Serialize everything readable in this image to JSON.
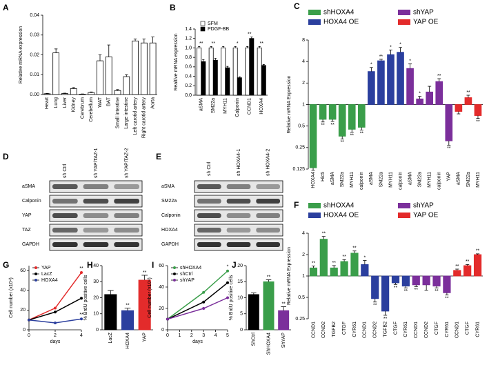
{
  "chart_data": [
    {
      "panel": "A",
      "type": "bar",
      "ylabel": "Relative mRNA expression",
      "categories": [
        "Heart",
        "Lung",
        "Liver",
        "Kidney",
        "Cerebrum",
        "Cerebellum",
        "WAT",
        "BAT",
        "Small intestine",
        "Large intestine",
        "Left carotid artery",
        "Right carotid artery",
        "Aorta"
      ],
      "values": [
        0.0004,
        0.021,
        0.0005,
        0.003,
        0.0002,
        0.001,
        0.017,
        0.019,
        0.002,
        0.009,
        0.027,
        0.026,
        0.026
      ],
      "errors": [
        0.0002,
        0.002,
        0.0002,
        0.0005,
        0.0001,
        0.0003,
        0.003,
        0.006,
        0.0005,
        0.001,
        0.001,
        0.002,
        0.003
      ],
      "color": "#ffffff",
      "edgecolor": "#000000",
      "ylim": [
        0,
        0.04
      ],
      "yticks": [
        {
          "value": 0,
          "label": "0.00"
        },
        0.01,
        0.02,
        0.03,
        0.04
      ]
    },
    {
      "panel": "B",
      "type": "bar",
      "ylabel": "Realtive mRNA expression",
      "categories": [
        "aSMA",
        "SM22a",
        "MYH11",
        "Calponin",
        "CCND1",
        "HOXA4"
      ],
      "series": [
        {
          "name": "SFM",
          "color": "#ffffff",
          "values": [
            1,
            1,
            1,
            1,
            1,
            1
          ],
          "errors": [
            0.03,
            0.03,
            0.03,
            0.03,
            0.03,
            0.03
          ]
        },
        {
          "name": "PDGF-BB",
          "color": "#000000",
          "values": [
            0.71,
            0.74,
            0.58,
            0.37,
            1.2,
            0.63
          ],
          "errors": [
            0.04,
            0.04,
            0.03,
            0.02,
            0.03,
            0.02
          ]
        }
      ],
      "significance": [
        "**",
        "**",
        null,
        "*",
        "**",
        "**"
      ],
      "edgecolor": "#000000",
      "legend": "upper left",
      "ylim": [
        0,
        1.4
      ],
      "yticks": [
        {
          "value": 0,
          "label": "0.0"
        },
        0.2,
        0.4,
        0.6,
        0.8,
        {
          "value": 1,
          "label": "1.0"
        },
        1.2,
        1.4
      ]
    },
    {
      "panel": "C",
      "type": "bar",
      "ylabel": "Relative mRNA Expression",
      "log_base": 2,
      "legend": "top",
      "categories": [
        "HOXA4",
        "Hic5",
        "aSMA",
        "SM22a",
        "MYH11",
        "calponin",
        "aSMA",
        "SM22a",
        "MYH11",
        "calponin",
        "aSMA",
        "SM22a",
        "MYH11",
        "calponin",
        "YAP",
        "aSMA",
        "SM22a",
        "MYH11"
      ],
      "series": [
        {
          "name": "shHOXA4",
          "color": "#3a9e4a",
          "values": [
            0.13,
            0.62,
            0.62,
            0.36,
            0.45,
            0.48,
            null,
            null,
            null,
            null,
            null,
            null,
            null,
            null,
            null,
            null,
            null,
            null
          ],
          "errors": [
            0.01,
            0.05,
            0.04,
            0.03,
            0.04,
            0.04,
            null,
            null,
            null,
            null,
            null,
            null,
            null,
            null,
            null,
            null,
            null,
            null
          ]
        },
        {
          "name": "HOXA4 OE",
          "color": "#2b3f9e",
          "values": [
            null,
            null,
            null,
            null,
            null,
            null,
            2.9,
            4.1,
            5.0,
            5.4,
            null,
            null,
            null,
            null,
            null,
            null,
            null,
            null
          ],
          "errors": [
            null,
            null,
            null,
            null,
            null,
            null,
            0.4,
            0.2,
            0.8,
            0.9,
            null,
            null,
            null,
            null,
            null,
            null,
            null,
            null
          ]
        },
        {
          "name": "shYAP",
          "color": "#7b2f9b",
          "values": [
            null,
            null,
            null,
            null,
            null,
            null,
            null,
            null,
            null,
            null,
            3.2,
            1.2,
            1.5,
            2.1,
            0.31,
            null,
            null,
            null
          ],
          "errors": [
            null,
            null,
            null,
            null,
            null,
            null,
            null,
            null,
            null,
            null,
            0.5,
            0.1,
            0.3,
            0.2,
            0.04,
            null,
            null,
            null
          ]
        },
        {
          "name": "YAP OE",
          "color": "#e32b2b",
          "values": [
            null,
            null,
            null,
            null,
            null,
            null,
            null,
            null,
            null,
            null,
            null,
            null,
            null,
            null,
            null,
            0.8,
            1.25,
            0.7
          ],
          "errors": [
            null,
            null,
            null,
            null,
            null,
            null,
            null,
            null,
            null,
            null,
            null,
            null,
            null,
            null,
            null,
            0.06,
            0.1,
            0.06
          ]
        }
      ],
      "significance": [
        null,
        "**",
        "**",
        "**",
        "**",
        "**",
        "*",
        "**",
        "*",
        "*",
        "*",
        "*",
        null,
        "**",
        "**",
        null,
        "**",
        "**"
      ],
      "ylim": [
        0.125,
        8
      ],
      "yticks": [
        0.125,
        0.25,
        0.5,
        1,
        2,
        4,
        8
      ]
    },
    {
      "panel": "F",
      "type": "bar",
      "ylabel": "Relative mRNA Expression",
      "log_base": 2,
      "legend": "top",
      "categories": [
        "CCND1",
        "CCND2",
        "TGFB2",
        "CTGF",
        "CYR61",
        "CCND1",
        "CCND2",
        "TGFB2",
        "CTGF",
        "CYR61",
        "CCND1",
        "CCND2",
        "CTGF",
        "CYR61",
        "CCND1",
        "CTGF",
        "CYR61"
      ],
      "series": [
        {
          "name": "shHOXA4",
          "color": "#3a9e4a",
          "values": [
            1.3,
            3.3,
            1.3,
            1.6,
            2.1,
            null,
            null,
            null,
            null,
            null,
            null,
            null,
            null,
            null,
            null,
            null,
            null
          ],
          "errors": [
            0.08,
            0.3,
            0.1,
            0.1,
            0.15,
            null,
            null,
            null,
            null,
            null,
            null,
            null,
            null,
            null,
            null,
            null,
            null
          ]
        },
        {
          "name": "HOXA4 OE",
          "color": "#2b3f9e",
          "values": [
            null,
            null,
            null,
            null,
            null,
            1.45,
            0.48,
            0.32,
            0.8,
            0.72,
            null,
            null,
            null,
            null,
            null,
            null,
            null
          ],
          "errors": [
            null,
            null,
            null,
            null,
            null,
            0.2,
            0.05,
            0.04,
            0.04,
            0.04,
            null,
            null,
            null,
            null,
            null,
            null,
            null
          ]
        },
        {
          "name": "shYAP",
          "color": "#7b2f9b",
          "values": [
            null,
            null,
            null,
            null,
            null,
            null,
            null,
            null,
            null,
            null,
            0.75,
            0.75,
            0.72,
            0.58,
            null,
            null,
            null
          ],
          "errors": [
            null,
            null,
            null,
            null,
            null,
            null,
            null,
            null,
            null,
            null,
            0.04,
            0.12,
            0.04,
            0.04,
            null,
            null,
            null
          ]
        },
        {
          "name": "YAP OE",
          "color": "#e32b2b",
          "values": [
            null,
            null,
            null,
            null,
            null,
            null,
            null,
            null,
            null,
            null,
            null,
            null,
            null,
            null,
            1.2,
            1.4,
            2.0
          ],
          "errors": [
            null,
            null,
            null,
            null,
            null,
            null,
            null,
            null,
            null,
            null,
            null,
            null,
            null,
            null,
            0.05,
            0.05,
            0.05
          ]
        }
      ],
      "significance": [
        "**",
        "**",
        "**",
        "**",
        "**",
        "*",
        "**",
        "**",
        "**",
        "**",
        "**",
        null,
        "**",
        "**",
        "**",
        "**",
        "**"
      ],
      "ylim": [
        0.25,
        4
      ],
      "yticks": [
        0.25,
        0.5,
        1,
        2,
        4
      ]
    },
    {
      "panel": "G",
      "type": "line",
      "ylabel": "Cell number (x10⁴)",
      "xlabel": "days",
      "legend": "upper left",
      "x": [
        0,
        2,
        4
      ],
      "xlim": [
        0,
        4
      ],
      "xticks": [
        0,
        2,
        4
      ],
      "ylim": [
        0,
        65
      ],
      "yticks": [
        0,
        20,
        40,
        60
      ],
      "series": [
        {
          "name": "YAP",
          "color": "#e32b2b",
          "values": [
            10,
            22,
            58
          ],
          "significance": "**"
        },
        {
          "name": "LacZ",
          "color": "#000000",
          "values": [
            10,
            18,
            32
          ]
        },
        {
          "name": "HOXA4",
          "color": "#2b3f9e",
          "values": [
            10,
            7,
            11
          ],
          "significance": "**"
        }
      ]
    },
    {
      "panel": "H",
      "type": "bar",
      "ylabel": "% BrdU positive cells",
      "categories": [
        "LacZ",
        "HOXA4",
        "YAP"
      ],
      "values": [
        22,
        12,
        31
      ],
      "errors": [
        2.5,
        1.5,
        3
      ],
      "colors": [
        "#000000",
        "#2b3f9e",
        "#e32b2b"
      ],
      "significance": [
        null,
        "**",
        "**"
      ],
      "ylim": [
        0,
        40
      ],
      "yticks": [
        0,
        10,
        20,
        30,
        40
      ]
    },
    {
      "panel": "I",
      "type": "line",
      "ylabel": "Cell number (x10⁴)",
      "xlabel": "days",
      "legend": "upper left",
      "x": [
        0,
        3,
        5
      ],
      "xlim": [
        0,
        5
      ],
      "xticks": [
        0,
        1,
        2,
        3,
        4,
        5
      ],
      "ylim": [
        0,
        60
      ],
      "yticks": [
        0,
        20,
        40,
        60
      ],
      "series": [
        {
          "name": "shHOXA4",
          "color": "#3a9e4a",
          "values": [
            10,
            35,
            55
          ],
          "significance": "*"
        },
        {
          "name": "shCtrl",
          "color": "#000000",
          "values": [
            10,
            26,
            44
          ]
        },
        {
          "name": "shYAP",
          "color": "#7b2f9b",
          "values": [
            10,
            20,
            30
          ]
        }
      ]
    },
    {
      "panel": "J",
      "type": "bar",
      "ylabel": "% BrdU positive cells",
      "categories": [
        "ShCtrl",
        "ShHOXA4",
        "ShYAP"
      ],
      "values": [
        11,
        15,
        6
      ],
      "errors": [
        0.5,
        0.6,
        1.2
      ],
      "colors": [
        "#000000",
        "#3a9e4a",
        "#7b2f9b"
      ],
      "significance": [
        null,
        "**",
        "**"
      ],
      "ylim": [
        0,
        20
      ],
      "yticks": [
        0,
        5,
        10,
        15,
        20
      ]
    }
  ],
  "blots": [
    {
      "panel": "D",
      "lanes": [
        "sh Ctrl",
        "sh YAP/TAZ-1",
        "sh YAP/TAZ-2"
      ],
      "rows": [
        "aSMA",
        "Calponin",
        "YAP",
        "TAZ",
        "GAPDH"
      ]
    },
    {
      "panel": "E",
      "lanes": [
        "sh Ctrl",
        "sh HOXA4-1",
        "sh HOXA4-2"
      ],
      "rows": [
        "aSMA",
        "SM22a",
        "Calponin",
        "HOXA4",
        "GAPDH"
      ]
    }
  ]
}
